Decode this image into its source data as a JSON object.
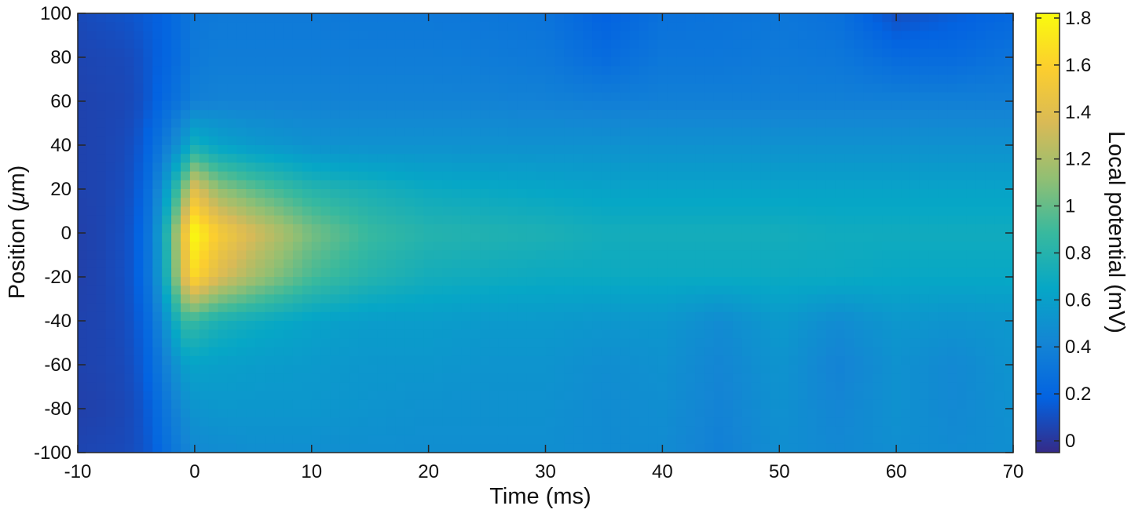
{
  "chart_data": {
    "type": "heatmap",
    "title": "",
    "xlabel": "Time (ms)",
    "ylabel_prefix": "Position (",
    "ylabel_mu": "μ",
    "ylabel_suffix": "m)",
    "colorbar_label": "Local potential (mV)",
    "xlim": [
      -10,
      70
    ],
    "ylim": [
      -100,
      100
    ],
    "clim": [
      -0.05,
      1.82
    ],
    "xticks": [
      -10,
      0,
      10,
      20,
      30,
      40,
      50,
      60,
      70
    ],
    "yticks": [
      100,
      80,
      60,
      40,
      20,
      0,
      -20,
      -40,
      -60,
      -80,
      -100
    ],
    "cticks": [
      "1.8",
      "1.6",
      "1.4",
      "1.2",
      "1",
      "0.8",
      "0.6",
      "0.4",
      "0.2",
      "0"
    ],
    "ctick_values": [
      1.8,
      1.6,
      1.4,
      1.2,
      1.0,
      0.8,
      0.6,
      0.4,
      0.2,
      0.0
    ],
    "colormap": "parula",
    "colormap_stops": [
      "#352a87",
      "#0363e1",
      "#1485d4",
      "#06a7c6",
      "#38b99e",
      "#92bf73",
      "#d9ba56",
      "#fcce2e",
      "#f9fb0e"
    ],
    "time_grid": [
      -10,
      -8,
      -6,
      -5,
      -4,
      -3,
      -2,
      -1,
      0,
      2,
      5,
      10,
      15,
      20,
      25,
      30,
      35,
      40,
      45,
      50,
      55,
      60,
      65,
      70
    ],
    "position_grid": [
      100,
      80,
      60,
      40,
      20,
      0,
      -20,
      -40,
      -60,
      -80,
      -100
    ],
    "values": [
      [
        0.08,
        0.1,
        0.12,
        0.14,
        0.16,
        0.18,
        0.22,
        0.28,
        0.32,
        0.34,
        0.34,
        0.34,
        0.33,
        0.33,
        0.32,
        0.3,
        0.18,
        0.28,
        0.3,
        0.32,
        0.28,
        0.1,
        0.16,
        0.22
      ],
      [
        0.06,
        0.07,
        0.08,
        0.1,
        0.14,
        0.18,
        0.22,
        0.28,
        0.34,
        0.36,
        0.36,
        0.36,
        0.36,
        0.36,
        0.35,
        0.33,
        0.24,
        0.32,
        0.32,
        0.34,
        0.32,
        0.24,
        0.24,
        0.3
      ],
      [
        0.05,
        0.06,
        0.07,
        0.09,
        0.14,
        0.2,
        0.26,
        0.32,
        0.38,
        0.4,
        0.4,
        0.4,
        0.4,
        0.4,
        0.4,
        0.39,
        0.37,
        0.38,
        0.38,
        0.38,
        0.38,
        0.38,
        0.38,
        0.38
      ],
      [
        0.05,
        0.06,
        0.08,
        0.12,
        0.2,
        0.3,
        0.42,
        0.55,
        0.72,
        0.62,
        0.56,
        0.5,
        0.5,
        0.5,
        0.5,
        0.5,
        0.5,
        0.5,
        0.5,
        0.5,
        0.5,
        0.5,
        0.5,
        0.5
      ],
      [
        0.05,
        0.06,
        0.09,
        0.14,
        0.26,
        0.44,
        0.7,
        1.05,
        1.38,
        1.12,
        0.98,
        0.8,
        0.74,
        0.68,
        0.66,
        0.64,
        0.62,
        0.62,
        0.62,
        0.62,
        0.62,
        0.62,
        0.62,
        0.62
      ],
      [
        0.04,
        0.06,
        0.1,
        0.16,
        0.3,
        0.56,
        0.95,
        1.45,
        1.8,
        1.55,
        1.35,
        1.05,
        0.88,
        0.8,
        0.78,
        0.76,
        0.72,
        0.72,
        0.72,
        0.72,
        0.7,
        0.7,
        0.7,
        0.7
      ],
      [
        0.04,
        0.06,
        0.1,
        0.16,
        0.3,
        0.54,
        0.9,
        1.38,
        1.62,
        1.38,
        1.18,
        0.92,
        0.8,
        0.72,
        0.7,
        0.68,
        0.68,
        0.68,
        0.68,
        0.68,
        0.68,
        0.66,
        0.66,
        0.66
      ],
      [
        0.05,
        0.06,
        0.09,
        0.14,
        0.24,
        0.4,
        0.62,
        0.86,
        0.86,
        0.76,
        0.7,
        0.62,
        0.58,
        0.58,
        0.56,
        0.56,
        0.54,
        0.54,
        0.46,
        0.56,
        0.46,
        0.54,
        0.52,
        0.54
      ],
      [
        0.05,
        0.06,
        0.08,
        0.12,
        0.2,
        0.32,
        0.45,
        0.58,
        0.62,
        0.6,
        0.58,
        0.56,
        0.54,
        0.54,
        0.52,
        0.52,
        0.48,
        0.5,
        0.42,
        0.52,
        0.4,
        0.5,
        0.44,
        0.52
      ],
      [
        0.04,
        0.05,
        0.07,
        0.1,
        0.16,
        0.26,
        0.36,
        0.46,
        0.52,
        0.54,
        0.54,
        0.54,
        0.52,
        0.5,
        0.5,
        0.5,
        0.46,
        0.48,
        0.4,
        0.5,
        0.42,
        0.5,
        0.44,
        0.5
      ],
      [
        0.06,
        0.07,
        0.08,
        0.1,
        0.14,
        0.22,
        0.3,
        0.38,
        0.44,
        0.46,
        0.48,
        0.48,
        0.48,
        0.48,
        0.48,
        0.48,
        0.46,
        0.46,
        0.38,
        0.48,
        0.44,
        0.48,
        0.46,
        0.48
      ]
    ]
  }
}
